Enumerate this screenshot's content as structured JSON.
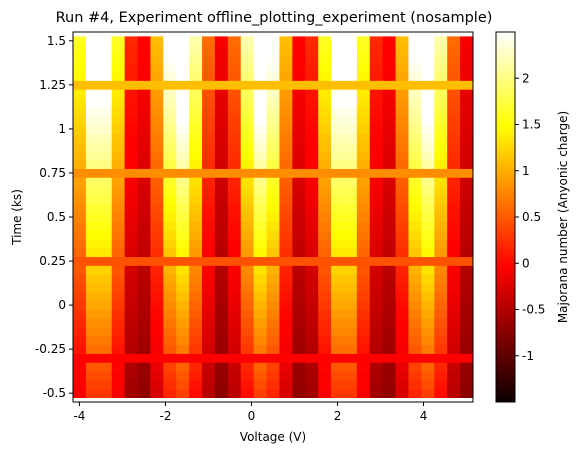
{
  "chart_data": {
    "type": "heatmap",
    "title": "Run #4, Experiment offline_plotting_experiment (nosample)",
    "xlabel": "Voltage (V)",
    "ylabel": "Time (ks)",
    "colorbar_label": "Majorana number (Anyonic charge)",
    "colormap": "hot",
    "xlim": [
      -4.15,
      5.15
    ],
    "ylim": [
      -0.55,
      1.55
    ],
    "clim": [
      -1.5,
      2.5
    ],
    "x_ticks": [
      -4,
      -2,
      0,
      2,
      4
    ],
    "x_tick_labels": [
      "-4",
      "-2",
      "0",
      "2",
      "4"
    ],
    "y_ticks": [
      -0.5,
      -0.25,
      0,
      0.25,
      0.5,
      0.75,
      1,
      1.25,
      1.5
    ],
    "y_tick_labels": [
      "-0.5",
      "-0.25",
      "0",
      "0.25",
      "0.5",
      "0.75",
      "1",
      "1.25",
      "1.5"
    ],
    "colorbar_ticks": [
      -1,
      -0.5,
      0,
      0.5,
      1,
      1.5,
      2
    ],
    "colorbar_tick_labels": [
      "-1",
      "-0.5",
      "0",
      "0.5",
      "1",
      "1.5",
      "2"
    ],
    "x_values": [
      -4,
      -3.7,
      -3.4,
      -3.1,
      -2.8,
      -2.5,
      -2.2,
      -1.9,
      -1.6,
      -1.3,
      -1,
      -0.7,
      -0.4,
      -0.1,
      0.2,
      0.5,
      0.8,
      1.1,
      1.4,
      1.7,
      2,
      2.3,
      2.6,
      2.9,
      3.2,
      3.5,
      3.8,
      4.1,
      4.4,
      4.7,
      5
    ],
    "y_values": [
      -0.5,
      -0.45,
      -0.4,
      -0.35,
      -0.3,
      -0.25,
      -0.2,
      -0.15,
      -0.1,
      -0.05,
      0,
      0.05,
      0.1,
      0.15,
      0.2,
      0.25,
      0.3,
      0.35,
      0.4,
      0.45,
      0.5,
      0.55,
      0.6,
      0.65,
      0.7,
      0.75,
      0.8,
      0.85,
      0.9,
      0.95,
      1,
      1.05,
      1.1,
      1.15,
      1.2,
      1.25,
      1.3,
      1.35,
      1.4,
      1.45,
      1.5
    ],
    "z_description": "Majorana number = 0.5 + t*sin(V*pi/1.05)*|sin(2*pi*t)|-style pattern; rows near t=-0.3, 0.25, 0.75, 1.25 flat",
    "grid": false
  }
}
